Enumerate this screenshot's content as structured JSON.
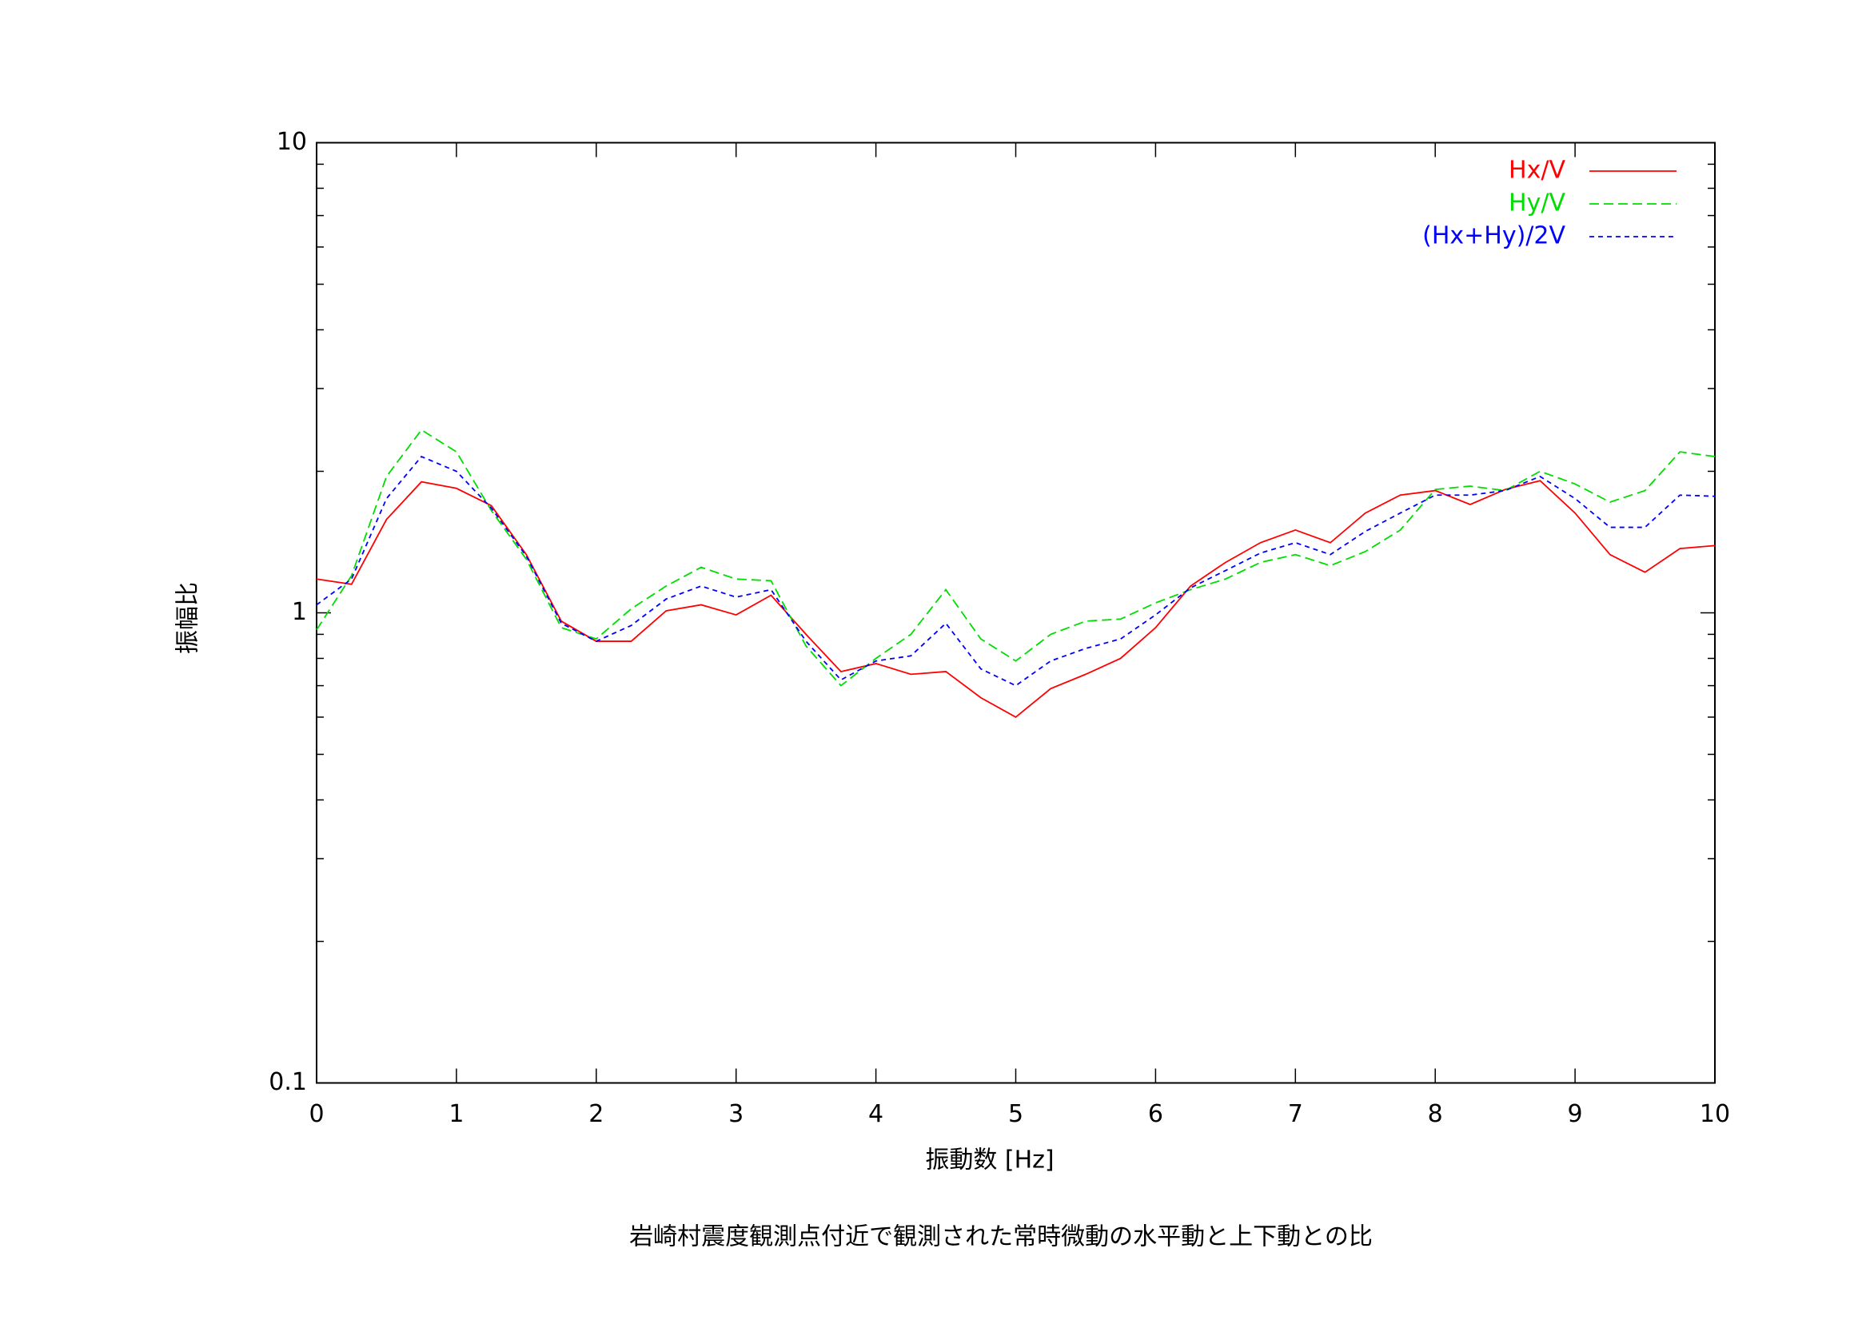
{
  "chart_data": {
    "type": "line",
    "title": "岩崎村震度観測点付近で観測された常時微動の水平動と上下動との比",
    "x_label": "振動数 [Hz]",
    "y_label": "振幅比",
    "x": [
      0,
      0.25,
      0.5,
      0.75,
      1,
      1.25,
      1.5,
      1.75,
      2,
      2.25,
      2.5,
      2.75,
      3,
      3.25,
      3.5,
      3.75,
      4,
      4.25,
      4.5,
      4.75,
      5,
      5.25,
      5.5,
      5.75,
      6,
      6.25,
      6.5,
      6.75,
      7,
      7.25,
      7.5,
      7.75,
      8,
      8.25,
      8.5,
      8.75,
      9,
      9.25,
      9.5,
      9.75,
      10
    ],
    "series": [
      {
        "name": "Hx/V",
        "color": "#ff0000",
        "values": [
          1.18,
          1.15,
          1.58,
          1.9,
          1.84,
          1.69,
          1.33,
          0.96,
          0.87,
          0.87,
          1.01,
          1.04,
          0.99,
          1.09,
          0.9,
          0.75,
          0.78,
          0.74,
          0.75,
          0.66,
          0.6,
          0.69,
          0.74,
          0.8,
          0.93,
          1.14,
          1.28,
          1.41,
          1.5,
          1.41,
          1.63,
          1.78,
          1.82,
          1.7,
          1.83,
          1.91,
          1.63,
          1.33,
          1.22,
          1.37,
          1.39
        ]
      },
      {
        "name": "Hy/V",
        "color": "#00dd00",
        "values": [
          0.92,
          1.2,
          1.95,
          2.45,
          2.2,
          1.65,
          1.3,
          0.93,
          0.88,
          1.02,
          1.14,
          1.25,
          1.18,
          1.17,
          0.85,
          0.7,
          0.8,
          0.9,
          1.12,
          0.88,
          0.79,
          0.9,
          0.96,
          0.97,
          1.05,
          1.12,
          1.18,
          1.28,
          1.33,
          1.26,
          1.35,
          1.5,
          1.83,
          1.86,
          1.82,
          2.0,
          1.88,
          1.72,
          1.82,
          2.2,
          2.15
        ]
      },
      {
        "name": "(Hx+Hy)/2V",
        "color": "#0000ff",
        "values": [
          1.04,
          1.18,
          1.75,
          2.15,
          2.0,
          1.67,
          1.32,
          0.95,
          0.87,
          0.94,
          1.07,
          1.14,
          1.08,
          1.12,
          0.87,
          0.72,
          0.79,
          0.81,
          0.95,
          0.76,
          0.7,
          0.79,
          0.84,
          0.88,
          0.99,
          1.13,
          1.23,
          1.34,
          1.41,
          1.33,
          1.49,
          1.63,
          1.78,
          1.78,
          1.82,
          1.95,
          1.75,
          1.52,
          1.52,
          1.78,
          1.77
        ]
      }
    ],
    "xlim": [
      0,
      10
    ],
    "xticks": [
      0,
      1,
      2,
      3,
      4,
      5,
      6,
      7,
      8,
      9,
      10
    ],
    "ylim": [
      0.1,
      10
    ],
    "yticks": [
      0.1,
      1,
      10
    ],
    "yminorticks": [
      0.2,
      0.3,
      0.4,
      0.5,
      0.6,
      0.7,
      0.8,
      0.9,
      2,
      3,
      4,
      5,
      6,
      7,
      8,
      9
    ],
    "log_y": true,
    "legend": "top-right"
  }
}
